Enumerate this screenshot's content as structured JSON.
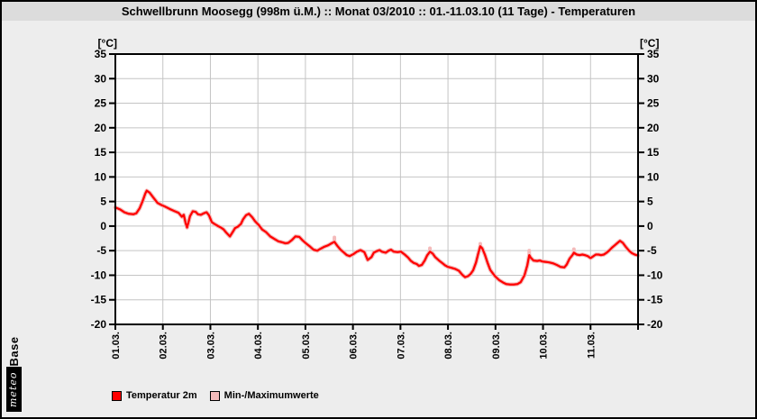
{
  "window": {
    "title": "Schwellbrunn Moosegg (998m ü.M.) :: Monat 03/2010 :: 01.-11.03.10 (11 Tage) - Temperaturen"
  },
  "logo": {
    "meteo": "meteo",
    "base": "Base"
  },
  "legend": [
    {
      "label": "Temperatur 2m",
      "color": "#ff0000"
    },
    {
      "label": "Min-/Maximumwerte",
      "color": "#f4baba"
    }
  ],
  "chart_data": {
    "type": "line",
    "title": "Schwellbrunn Moosegg (998m ü.M.) :: Monat 03/2010 :: 01.-11.03.10 (11 Tage) - Temperaturen",
    "ylabel_left": "[°C]",
    "ylabel_right": "[°C]",
    "xlabel": "",
    "ylim": [
      -20,
      35
    ],
    "yticks": [
      35,
      30,
      25,
      20,
      15,
      10,
      5,
      0,
      -5,
      -10,
      -15,
      -20
    ],
    "x_categories": [
      "01.03.",
      "02.03.",
      "03.03.",
      "04.03.",
      "05.03.",
      "06.03.",
      "07.03.",
      "08.03.",
      "09.03.",
      "10.03.",
      "11.03."
    ],
    "x_range_days": [
      0,
      11
    ],
    "grid": true,
    "legend_position": "bottom",
    "colors": {
      "line": "#ff0000",
      "band": "#f4baba",
      "grid": "#c4c4c4",
      "plot_bg": "#ffffff",
      "axis": "#000000"
    },
    "series": [
      {
        "name": "Temperatur 2m",
        "color": "#ff0000",
        "points": [
          [
            0.0,
            3.8
          ],
          [
            0.1,
            3.4
          ],
          [
            0.19,
            2.8
          ],
          [
            0.28,
            2.5
          ],
          [
            0.38,
            2.4
          ],
          [
            0.44,
            2.6
          ],
          [
            0.51,
            3.6
          ],
          [
            0.57,
            5.0
          ],
          [
            0.63,
            6.6
          ],
          [
            0.66,
            7.2
          ],
          [
            0.72,
            6.8
          ],
          [
            0.8,
            5.8
          ],
          [
            0.89,
            4.7
          ],
          [
            0.97,
            4.3
          ],
          [
            1.04,
            4.0
          ],
          [
            1.14,
            3.5
          ],
          [
            1.23,
            3.1
          ],
          [
            1.33,
            2.7
          ],
          [
            1.4,
            1.9
          ],
          [
            1.44,
            2.3
          ],
          [
            1.48,
            0.6
          ],
          [
            1.51,
            -0.3
          ],
          [
            1.54,
            0.8
          ],
          [
            1.57,
            2.0
          ],
          [
            1.63,
            3.0
          ],
          [
            1.69,
            2.9
          ],
          [
            1.74,
            2.4
          ],
          [
            1.8,
            2.3
          ],
          [
            1.86,
            2.6
          ],
          [
            1.92,
            2.8
          ],
          [
            1.97,
            2.2
          ],
          [
            2.03,
            0.8
          ],
          [
            2.09,
            0.4
          ],
          [
            2.16,
            0.0
          ],
          [
            2.22,
            -0.3
          ],
          [
            2.28,
            -0.7
          ],
          [
            2.33,
            -1.3
          ],
          [
            2.41,
            -2.1
          ],
          [
            2.47,
            -1.2
          ],
          [
            2.52,
            -0.4
          ],
          [
            2.58,
            -0.1
          ],
          [
            2.64,
            0.4
          ],
          [
            2.69,
            1.4
          ],
          [
            2.75,
            2.2
          ],
          [
            2.81,
            2.5
          ],
          [
            2.88,
            1.8
          ],
          [
            2.94,
            1.0
          ],
          [
            3.02,
            0.2
          ],
          [
            3.09,
            -0.7
          ],
          [
            3.17,
            -1.2
          ],
          [
            3.26,
            -2.1
          ],
          [
            3.36,
            -2.7
          ],
          [
            3.43,
            -3.1
          ],
          [
            3.51,
            -3.3
          ],
          [
            3.58,
            -3.5
          ],
          [
            3.64,
            -3.4
          ],
          [
            3.72,
            -2.8
          ],
          [
            3.79,
            -2.1
          ],
          [
            3.87,
            -2.2
          ],
          [
            3.94,
            -2.9
          ],
          [
            4.02,
            -3.6
          ],
          [
            4.1,
            -4.2
          ],
          [
            4.17,
            -4.8
          ],
          [
            4.25,
            -5.0
          ],
          [
            4.32,
            -4.6
          ],
          [
            4.4,
            -4.2
          ],
          [
            4.48,
            -3.9
          ],
          [
            4.55,
            -3.5
          ],
          [
            4.61,
            -3.2
          ],
          [
            4.67,
            -4.0
          ],
          [
            4.74,
            -4.8
          ],
          [
            4.8,
            -5.3
          ],
          [
            4.87,
            -5.9
          ],
          [
            4.93,
            -6.1
          ],
          [
            5.01,
            -5.7
          ],
          [
            5.08,
            -5.2
          ],
          [
            5.16,
            -4.9
          ],
          [
            5.24,
            -5.3
          ],
          [
            5.31,
            -6.9
          ],
          [
            5.39,
            -6.3
          ],
          [
            5.44,
            -5.4
          ],
          [
            5.5,
            -5.1
          ],
          [
            5.56,
            -4.9
          ],
          [
            5.61,
            -5.2
          ],
          [
            5.69,
            -5.4
          ],
          [
            5.75,
            -5.0
          ],
          [
            5.8,
            -4.8
          ],
          [
            5.86,
            -5.2
          ],
          [
            5.94,
            -5.3
          ],
          [
            6.01,
            -5.2
          ],
          [
            6.09,
            -5.8
          ],
          [
            6.16,
            -6.4
          ],
          [
            6.22,
            -7.1
          ],
          [
            6.28,
            -7.5
          ],
          [
            6.34,
            -7.7
          ],
          [
            6.39,
            -8.1
          ],
          [
            6.45,
            -7.9
          ],
          [
            6.51,
            -7.0
          ],
          [
            6.56,
            -6.0
          ],
          [
            6.62,
            -5.2
          ],
          [
            6.68,
            -5.6
          ],
          [
            6.73,
            -6.3
          ],
          [
            6.81,
            -7.0
          ],
          [
            6.89,
            -7.6
          ],
          [
            6.94,
            -8.0
          ],
          [
            7.0,
            -8.3
          ],
          [
            7.08,
            -8.5
          ],
          [
            7.15,
            -8.7
          ],
          [
            7.23,
            -9.1
          ],
          [
            7.3,
            -9.9
          ],
          [
            7.36,
            -10.4
          ],
          [
            7.42,
            -10.2
          ],
          [
            7.47,
            -9.8
          ],
          [
            7.53,
            -9.0
          ],
          [
            7.59,
            -7.4
          ],
          [
            7.64,
            -5.5
          ],
          [
            7.68,
            -4.1
          ],
          [
            7.72,
            -4.5
          ],
          [
            7.78,
            -5.9
          ],
          [
            7.83,
            -7.4
          ],
          [
            7.89,
            -8.9
          ],
          [
            7.95,
            -9.7
          ],
          [
            8.0,
            -10.3
          ],
          [
            8.08,
            -11.0
          ],
          [
            8.16,
            -11.5
          ],
          [
            8.23,
            -11.8
          ],
          [
            8.31,
            -11.9
          ],
          [
            8.38,
            -11.9
          ],
          [
            8.46,
            -11.8
          ],
          [
            8.53,
            -11.4
          ],
          [
            8.61,
            -10.0
          ],
          [
            8.67,
            -8.0
          ],
          [
            8.71,
            -5.9
          ],
          [
            8.74,
            -6.4
          ],
          [
            8.8,
            -7.0
          ],
          [
            8.88,
            -7.1
          ],
          [
            8.93,
            -7.0
          ],
          [
            8.99,
            -7.2
          ],
          [
            9.07,
            -7.3
          ],
          [
            9.14,
            -7.4
          ],
          [
            9.22,
            -7.6
          ],
          [
            9.29,
            -7.9
          ],
          [
            9.37,
            -8.3
          ],
          [
            9.45,
            -8.4
          ],
          [
            9.5,
            -7.8
          ],
          [
            9.56,
            -6.6
          ],
          [
            9.62,
            -5.9
          ],
          [
            9.65,
            -5.4
          ],
          [
            9.71,
            -5.8
          ],
          [
            9.77,
            -5.9
          ],
          [
            9.83,
            -5.8
          ],
          [
            9.88,
            -5.9
          ],
          [
            9.94,
            -6.1
          ],
          [
            10.0,
            -6.5
          ],
          [
            10.05,
            -6.2
          ],
          [
            10.11,
            -5.8
          ],
          [
            10.17,
            -5.8
          ],
          [
            10.22,
            -5.9
          ],
          [
            10.28,
            -5.8
          ],
          [
            10.34,
            -5.4
          ],
          [
            10.4,
            -4.9
          ],
          [
            10.45,
            -4.4
          ],
          [
            10.51,
            -3.9
          ],
          [
            10.57,
            -3.4
          ],
          [
            10.62,
            -3.0
          ],
          [
            10.68,
            -3.4
          ],
          [
            10.74,
            -4.2
          ],
          [
            10.81,
            -5.0
          ],
          [
            10.87,
            -5.5
          ],
          [
            10.93,
            -5.8
          ],
          [
            11.0,
            -6.0
          ]
        ]
      },
      {
        "name": "Min-/Maximumwerte",
        "color": "#f4baba",
        "type": "band",
        "band_halfwidth_deg": 0.25,
        "max_spikes": [
          {
            "day": 4.61,
            "from": -3.2,
            "max": -2.3
          },
          {
            "day": 6.62,
            "from": -5.2,
            "max": -4.5
          },
          {
            "day": 7.68,
            "from": -4.1,
            "max": -3.6
          },
          {
            "day": 8.71,
            "from": -5.9,
            "max": -5.0
          },
          {
            "day": 9.65,
            "from": -5.4,
            "max": -4.7
          }
        ]
      }
    ]
  }
}
